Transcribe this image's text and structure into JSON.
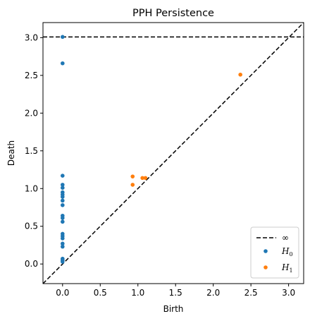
{
  "chart_data": {
    "type": "scatter",
    "title": "PPH Persistence",
    "xlabel": "Birth",
    "ylabel": "Death",
    "xlim": [
      -0.26,
      3.2
    ],
    "ylim": [
      -0.26,
      3.2
    ],
    "x_ticks": [
      "0.0",
      "0.5",
      "1.0",
      "1.5",
      "2.0",
      "2.5",
      "3.0"
    ],
    "y_ticks": [
      "0.0",
      "0.5",
      "1.0",
      "1.5",
      "2.0",
      "2.5",
      "3.0"
    ],
    "x_tick_values": [
      0,
      0.5,
      1.0,
      1.5,
      2.0,
      2.5,
      3.0
    ],
    "y_tick_values": [
      0,
      0.5,
      1.0,
      1.5,
      2.0,
      2.5,
      3.0
    ],
    "infinity_line": 3.01,
    "diagonal": true,
    "grid": false,
    "legend_position": "bottom-right",
    "legend": {
      "inf_label": "∞",
      "h0_base": "H",
      "h0_sub": "0",
      "h1_base": "H",
      "h1_sub": "1"
    },
    "series": [
      {
        "name": "H0",
        "color": "#1f77b4",
        "points": [
          [
            0,
            3.01
          ],
          [
            0,
            2.66
          ],
          [
            0,
            1.17
          ],
          [
            0,
            1.05
          ],
          [
            0,
            1.01
          ],
          [
            0,
            0.95
          ],
          [
            0,
            0.92
          ],
          [
            0,
            0.89
          ],
          [
            0,
            0.84
          ],
          [
            0,
            0.78
          ],
          [
            0,
            0.64
          ],
          [
            0,
            0.61
          ],
          [
            0,
            0.56
          ],
          [
            0,
            0.4
          ],
          [
            0,
            0.37
          ],
          [
            0,
            0.34
          ],
          [
            0,
            0.27
          ],
          [
            0,
            0.23
          ],
          [
            0,
            0.07
          ],
          [
            0,
            0.05
          ],
          [
            0,
            0.03
          ]
        ]
      },
      {
        "name": "H1",
        "color": "#ff7f0e",
        "points": [
          [
            0.93,
            1.16
          ],
          [
            0.93,
            1.05
          ],
          [
            1.06,
            1.14
          ],
          [
            1.1,
            1.14
          ],
          [
            2.36,
            2.51
          ]
        ]
      }
    ]
  }
}
